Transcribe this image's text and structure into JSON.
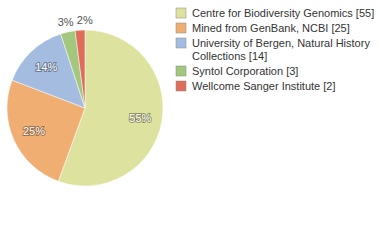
{
  "chart_data": {
    "type": "pie",
    "categories": [
      "Centre for Biodiversity Genomics [55]",
      "Mined from GenBank, NCBI [25]",
      "University of Bergen, Natural History Collections [14]",
      "Syntol Corporation [3]",
      "Wellcome Sanger Institute [2]"
    ],
    "values": [
      55,
      25,
      14,
      3,
      2
    ],
    "value_labels": [
      "55%",
      "25%",
      "14%",
      "3%",
      "2%"
    ],
    "colors": [
      "#dde29e",
      "#f0ae73",
      "#a4bcdf",
      "#a2c77d",
      "#e06c5a"
    ],
    "data_labels": true,
    "legend": "top-right"
  }
}
